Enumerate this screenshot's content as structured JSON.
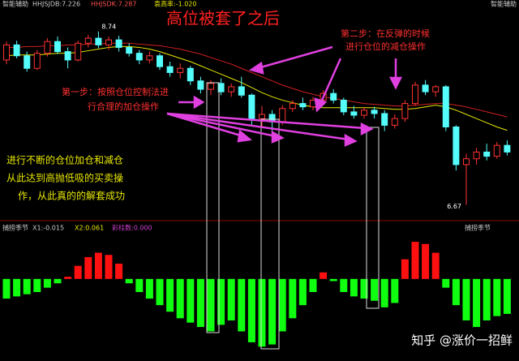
{
  "header": {
    "left": "智能辅助",
    "items": [
      "HHJSJDB:7.226",
      "HHJSDK:7.287",
      "袁高率:-1.020"
    ],
    "right": "智能辅助"
  },
  "watermark": "知乎 @涨价一招鲜",
  "chart_data": [
    {
      "type": "candlestick",
      "title": "高位被套了之后",
      "annotations": [
        "第二步：在反弹的时候",
        "进行仓位的减仓操作",
        "第一步：按照仓位控制法进",
        "行合理的加仓操作",
        "进行不断的仓位加仓和减仓",
        "从此达到高抛低吸的买卖操",
        "作，从此真的的解套成功"
      ],
      "up_color": "#ff3232",
      "down_color": "#54fcfc",
      "ylim": [
        6.5,
        9.0
      ],
      "open": [
        8.4,
        8.58,
        8.45,
        8.3,
        8.48,
        8.62,
        8.5,
        8.4,
        8.6,
        8.66,
        8.58,
        8.64,
        8.55,
        8.48,
        8.4,
        8.45,
        8.32,
        8.25,
        8.3,
        8.15,
        8.05,
        8.12,
        8.02,
        8.08,
        7.98,
        7.7,
        7.75,
        7.66,
        7.82,
        7.88,
        7.84,
        7.92,
        8.0,
        7.92,
        7.78,
        7.74,
        7.8,
        7.76,
        7.62,
        7.7,
        7.88,
        8.1,
        8.02,
        8.08,
        7.6,
        7.15,
        7.22,
        7.3,
        7.25,
        7.38
      ],
      "close": [
        8.58,
        8.45,
        8.3,
        8.48,
        8.62,
        8.5,
        8.4,
        8.6,
        8.66,
        8.58,
        8.64,
        8.55,
        8.48,
        8.4,
        8.45,
        8.32,
        8.25,
        8.3,
        8.15,
        8.05,
        8.12,
        8.02,
        8.08,
        7.98,
        7.7,
        7.75,
        7.66,
        7.82,
        7.88,
        7.84,
        7.92,
        8.0,
        7.92,
        7.78,
        7.74,
        7.8,
        7.76,
        7.62,
        7.7,
        7.88,
        8.1,
        8.02,
        8.08,
        7.6,
        7.15,
        7.22,
        7.3,
        7.25,
        7.38,
        7.3
      ],
      "high": [
        8.62,
        8.63,
        8.5,
        8.52,
        8.66,
        8.68,
        8.55,
        8.63,
        8.7,
        8.74,
        8.68,
        8.69,
        8.6,
        8.52,
        8.5,
        8.48,
        8.38,
        8.36,
        8.33,
        8.2,
        8.16,
        8.18,
        8.12,
        8.2,
        8.0,
        7.85,
        7.8,
        7.86,
        7.92,
        7.95,
        7.96,
        8.04,
        8.05,
        7.95,
        7.85,
        7.84,
        7.84,
        7.8,
        7.75,
        7.92,
        8.14,
        8.16,
        8.1,
        8.1,
        7.62,
        7.28,
        7.35,
        7.4,
        7.42,
        7.44
      ],
      "low": [
        8.35,
        8.42,
        8.26,
        8.28,
        8.44,
        8.47,
        8.3,
        8.38,
        8.55,
        8.54,
        8.52,
        8.5,
        8.44,
        8.35,
        8.36,
        8.28,
        8.2,
        8.18,
        8.1,
        8.0,
        7.98,
        7.98,
        7.96,
        7.95,
        7.62,
        7.6,
        7.55,
        7.62,
        7.78,
        7.8,
        7.8,
        7.88,
        7.88,
        7.74,
        7.7,
        7.7,
        7.7,
        7.55,
        7.58,
        7.66,
        7.85,
        7.98,
        7.96,
        7.55,
        7.08,
        6.67,
        7.15,
        7.2,
        7.22,
        7.26
      ],
      "series": [
        {
          "color": "#e8e800",
          "values": [
            8.45,
            8.46,
            8.46,
            8.46,
            8.47,
            8.48,
            8.48,
            8.49,
            8.51,
            8.53,
            8.55,
            8.56,
            8.56,
            8.55,
            8.53,
            8.5,
            8.46,
            8.42,
            8.38,
            8.33,
            8.28,
            8.23,
            8.18,
            8.13,
            8.07,
            8.01,
            7.96,
            7.92,
            7.89,
            7.86,
            7.84,
            7.83,
            7.83,
            7.83,
            7.83,
            7.83,
            7.83,
            7.82,
            7.81,
            7.81,
            7.82,
            7.84,
            7.86,
            7.84,
            7.8,
            7.75,
            7.7,
            7.65,
            7.6,
            7.56
          ]
        },
        {
          "color": "#d02020",
          "values": [
            8.55,
            8.55,
            8.56,
            8.56,
            8.57,
            8.57,
            8.58,
            8.58,
            8.59,
            8.59,
            8.6,
            8.6,
            8.6,
            8.59,
            8.58,
            8.57,
            8.55,
            8.53,
            8.5,
            8.47,
            8.43,
            8.39,
            8.35,
            8.3,
            8.25,
            8.2,
            8.15,
            8.1,
            8.06,
            8.02,
            7.99,
            7.96,
            7.94,
            7.92,
            7.9,
            7.88,
            7.87,
            7.86,
            7.85,
            7.85,
            7.86,
            7.87,
            7.88,
            7.88,
            7.86,
            7.84,
            7.81,
            7.78,
            7.75,
            7.72
          ]
        }
      ]
    },
    {
      "type": "bar",
      "title": "捕捞季节",
      "legend": [
        "X1:-0.015",
        "X2:0.061",
        "彩柱数:0.000"
      ],
      "right_title": "捕捞季节",
      "pos_color": "#ff1010",
      "neg_color": "#10ff10",
      "ylim": [
        -1.6,
        1.0
      ],
      "values": [
        -0.45,
        -0.4,
        -0.35,
        -0.3,
        -0.2,
        -0.1,
        0.05,
        0.3,
        0.5,
        0.6,
        0.55,
        0.35,
        -0.1,
        -0.3,
        -0.45,
        -0.6,
        -0.75,
        -0.9,
        -1.0,
        -1.1,
        -1.2,
        -1.05,
        -0.95,
        -1.2,
        -1.45,
        -1.55,
        -1.5,
        -1.2,
        -0.9,
        -0.6,
        -0.3,
        0.15,
        -0.05,
        -0.3,
        -0.4,
        -0.45,
        -0.5,
        -0.65,
        -0.55,
        0.45,
        0.85,
        0.8,
        0.6,
        -0.2,
        -0.6,
        -0.95,
        -1.1,
        -0.95,
        -0.85,
        -0.8
      ]
    }
  ]
}
